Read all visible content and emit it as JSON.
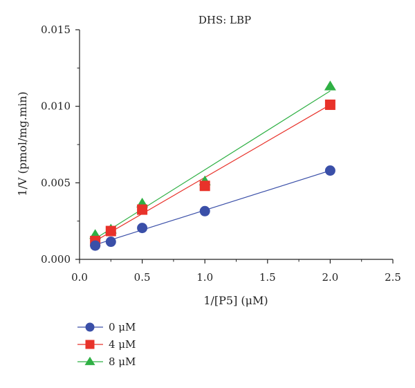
{
  "chart_data": {
    "type": "scatter",
    "title": "DHS: LBP",
    "xlabel": "1/[P5] (μM)",
    "ylabel": "1/V (pmol/mg.min)",
    "xlim": [
      0.0,
      2.5
    ],
    "ylim": [
      0.0,
      0.015
    ],
    "x_ticks": [
      "0.0",
      "0.5",
      "1.0",
      "1.5",
      "2.0",
      "2.5"
    ],
    "y_ticks": [
      "0.000",
      "0.005",
      "0.010",
      "0.015"
    ],
    "grid": false,
    "legend_position": "bottom-left",
    "series": [
      {
        "name": "0 μM",
        "color": "#3a4fa8",
        "marker": "circle",
        "x": [
          0.125,
          0.25,
          0.5,
          1.0,
          2.0
        ],
        "y": [
          0.0009,
          0.00115,
          0.00205,
          0.00315,
          0.0058
        ],
        "fit": [
          [
            0.125,
            0.00095
          ],
          [
            2.0,
            0.0058
          ]
        ]
      },
      {
        "name": "4 μM",
        "color": "#e8322a",
        "marker": "square",
        "x": [
          0.125,
          0.25,
          0.5,
          1.0,
          2.0
        ],
        "y": [
          0.0012,
          0.00185,
          0.00325,
          0.0048,
          0.0101
        ],
        "fit": [
          [
            0.125,
            0.0012
          ],
          [
            2.0,
            0.0101
          ]
        ]
      },
      {
        "name": "8 μM",
        "color": "#2fb044",
        "marker": "triangle",
        "x": [
          0.125,
          0.25,
          0.5,
          1.0,
          2.0
        ],
        "y": [
          0.0016,
          0.00195,
          0.00365,
          0.0051,
          0.0113
        ],
        "fit": [
          [
            0.125,
            0.00135
          ],
          [
            2.0,
            0.011
          ]
        ]
      }
    ]
  }
}
